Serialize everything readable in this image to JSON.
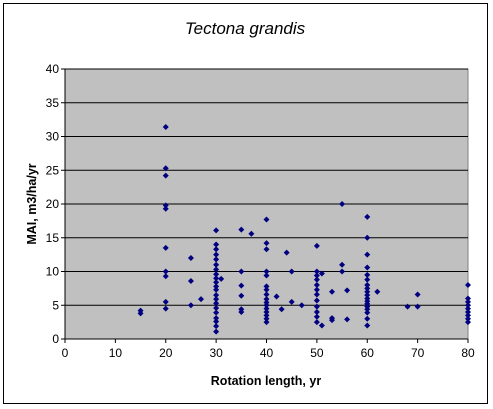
{
  "chart_data": {
    "type": "scatter",
    "title": "Tectona grandis",
    "xlabel": "Rotation length, yr",
    "ylabel": "MAI, m3/ha/yr",
    "xlim": [
      0,
      80
    ],
    "ylim": [
      0,
      40
    ],
    "x_ticks": [
      0,
      10,
      20,
      30,
      40,
      50,
      60,
      70,
      80
    ],
    "y_ticks": [
      0,
      5,
      10,
      15,
      20,
      25,
      30,
      35,
      40
    ],
    "grid": "horizontal",
    "legend": "none",
    "plot_background": "#c0c0c0",
    "marker_color": "#000080",
    "marker": "diamond",
    "points": [
      [
        15,
        4.2
      ],
      [
        15,
        3.8
      ],
      [
        20,
        31.4
      ],
      [
        20,
        25.3
      ],
      [
        20,
        24.2
      ],
      [
        20,
        19.8
      ],
      [
        20,
        19.3
      ],
      [
        20,
        13.5
      ],
      [
        20,
        10.0
      ],
      [
        20,
        9.3
      ],
      [
        20,
        5.5
      ],
      [
        20,
        4.5
      ],
      [
        25,
        12.0
      ],
      [
        25,
        8.6
      ],
      [
        25,
        5.0
      ],
      [
        27,
        5.9
      ],
      [
        30,
        16.1
      ],
      [
        30,
        14.0
      ],
      [
        30,
        13.3
      ],
      [
        30,
        12.5
      ],
      [
        30,
        11.8
      ],
      [
        30,
        11.0
      ],
      [
        30,
        10.3
      ],
      [
        30,
        9.6
      ],
      [
        30,
        9.0
      ],
      [
        30,
        8.4
      ],
      [
        30,
        7.8
      ],
      [
        30,
        7.3
      ],
      [
        30,
        6.5
      ],
      [
        30,
        5.9
      ],
      [
        30,
        5.3
      ],
      [
        30,
        4.6
      ],
      [
        30,
        3.9
      ],
      [
        30,
        3.1
      ],
      [
        30,
        2.6
      ],
      [
        30,
        1.9
      ],
      [
        30,
        1.1
      ],
      [
        31,
        8.9
      ],
      [
        35,
        16.2
      ],
      [
        35,
        10.0
      ],
      [
        35,
        7.9
      ],
      [
        35,
        6.4
      ],
      [
        35,
        4.4
      ],
      [
        35,
        4.0
      ],
      [
        37,
        15.6
      ],
      [
        40,
        17.7
      ],
      [
        40,
        14.2
      ],
      [
        40,
        13.3
      ],
      [
        40,
        10.0
      ],
      [
        40,
        9.4
      ],
      [
        40,
        7.8
      ],
      [
        40,
        7.3
      ],
      [
        40,
        6.6
      ],
      [
        40,
        5.9
      ],
      [
        40,
        5.4
      ],
      [
        40,
        5.0
      ],
      [
        40,
        4.5
      ],
      [
        40,
        4.0
      ],
      [
        40,
        3.5
      ],
      [
        40,
        3.0
      ],
      [
        40,
        2.5
      ],
      [
        42,
        6.3
      ],
      [
        43,
        4.4
      ],
      [
        44,
        12.8
      ],
      [
        45,
        10.0
      ],
      [
        45,
        5.5
      ],
      [
        47,
        5.0
      ],
      [
        50,
        13.8
      ],
      [
        50,
        10.0
      ],
      [
        50,
        9.4
      ],
      [
        50,
        8.8
      ],
      [
        50,
        8.0
      ],
      [
        50,
        7.3
      ],
      [
        50,
        6.6
      ],
      [
        50,
        5.7
      ],
      [
        50,
        4.8
      ],
      [
        50,
        4.0
      ],
      [
        50,
        3.3
      ],
      [
        50,
        2.5
      ],
      [
        51,
        9.7
      ],
      [
        51,
        2.0
      ],
      [
        53,
        7.0
      ],
      [
        53,
        3.1
      ],
      [
        53,
        2.8
      ],
      [
        55,
        20.0
      ],
      [
        55,
        11.0
      ],
      [
        55,
        10.0
      ],
      [
        56,
        7.2
      ],
      [
        56,
        2.9
      ],
      [
        60,
        18.1
      ],
      [
        60,
        15.0
      ],
      [
        60,
        12.5
      ],
      [
        60,
        10.6
      ],
      [
        60,
        9.5
      ],
      [
        60,
        8.8
      ],
      [
        60,
        8.0
      ],
      [
        60,
        7.5
      ],
      [
        60,
        7.0
      ],
      [
        60,
        6.5
      ],
      [
        60,
        6.0
      ],
      [
        60,
        5.6
      ],
      [
        60,
        5.2
      ],
      [
        60,
        4.8
      ],
      [
        60,
        4.4
      ],
      [
        60,
        3.9
      ],
      [
        60,
        3.0
      ],
      [
        60,
        2.0
      ],
      [
        62,
        7.0
      ],
      [
        68,
        4.8
      ],
      [
        70,
        6.6
      ],
      [
        70,
        4.8
      ],
      [
        80,
        8.0
      ],
      [
        80,
        6.0
      ],
      [
        80,
        5.5
      ],
      [
        80,
        5.0
      ],
      [
        80,
        4.5
      ],
      [
        80,
        4.0
      ],
      [
        80,
        3.5
      ],
      [
        80,
        3.0
      ],
      [
        80,
        2.5
      ]
    ]
  }
}
